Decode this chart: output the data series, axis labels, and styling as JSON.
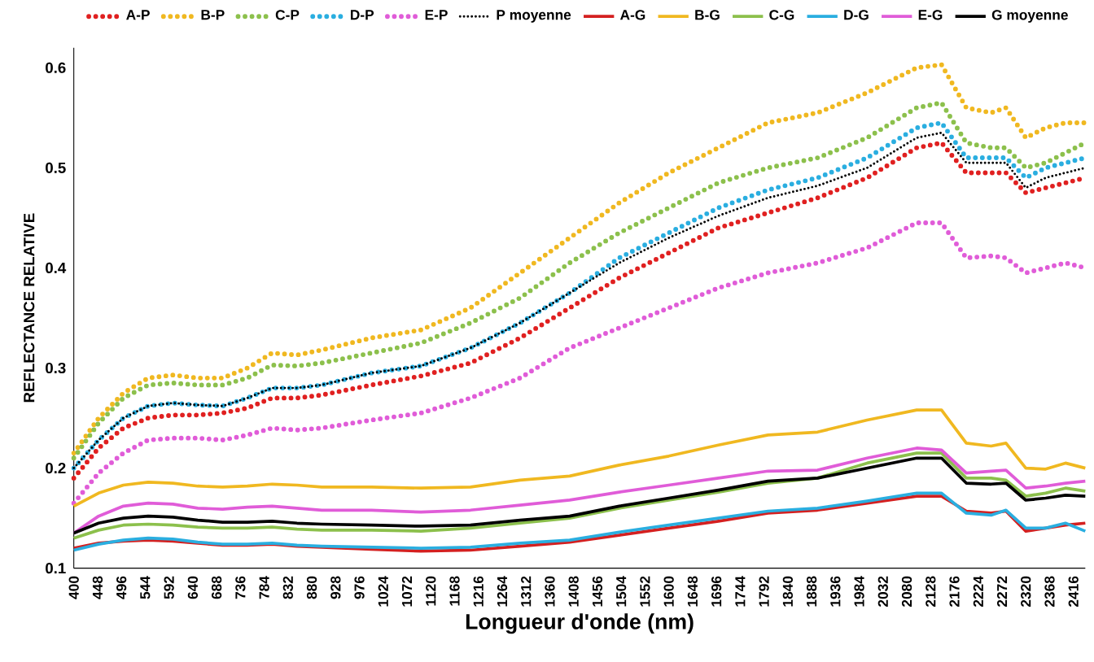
{
  "chart_data": {
    "type": "line",
    "xlabel": "Longueur d'onde (nm)",
    "ylabel": "REFLECTANCE  RELATIVE",
    "legend": "top",
    "xlim": [
      400,
      2440
    ],
    "ylim": [
      0.1,
      0.62
    ],
    "xticks": [
      400,
      448,
      496,
      544,
      592,
      640,
      688,
      736,
      784,
      832,
      880,
      928,
      976,
      1024,
      1072,
      1120,
      1168,
      1216,
      1264,
      1312,
      1360,
      1408,
      1456,
      1504,
      1552,
      1600,
      1648,
      1696,
      1744,
      1792,
      1840,
      1888,
      1936,
      1984,
      2032,
      2080,
      2128,
      2176,
      2224,
      2272,
      2320,
      2368,
      2416
    ],
    "yticks": [
      0.1,
      0.2,
      0.3,
      0.4,
      0.5,
      0.6
    ],
    "x": [
      400,
      450,
      500,
      550,
      600,
      650,
      700,
      750,
      800,
      850,
      900,
      1000,
      1100,
      1200,
      1300,
      1400,
      1500,
      1600,
      1700,
      1800,
      1900,
      2000,
      2100,
      2150,
      2200,
      2250,
      2280,
      2320,
      2360,
      2400,
      2440
    ],
    "series": [
      {
        "name": "A-P",
        "color": "#e02020",
        "line_style": "dotted",
        "values": [
          0.19,
          0.22,
          0.24,
          0.25,
          0.253,
          0.253,
          0.255,
          0.26,
          0.27,
          0.27,
          0.273,
          0.283,
          0.292,
          0.305,
          0.33,
          0.36,
          0.39,
          0.415,
          0.44,
          0.455,
          0.47,
          0.49,
          0.52,
          0.525,
          0.495,
          0.495,
          0.495,
          0.475,
          0.48,
          0.485,
          0.49
        ]
      },
      {
        "name": "B-P",
        "color": "#f0b820",
        "line_style": "dotted",
        "values": [
          0.215,
          0.25,
          0.275,
          0.29,
          0.293,
          0.29,
          0.29,
          0.3,
          0.315,
          0.313,
          0.318,
          0.33,
          0.338,
          0.36,
          0.395,
          0.43,
          0.465,
          0.495,
          0.52,
          0.545,
          0.555,
          0.575,
          0.6,
          0.603,
          0.56,
          0.555,
          0.56,
          0.53,
          0.54,
          0.545,
          0.545
        ]
      },
      {
        "name": "C-P",
        "color": "#8cc04c",
        "line_style": "dotted",
        "values": [
          0.21,
          0.245,
          0.27,
          0.283,
          0.285,
          0.283,
          0.283,
          0.29,
          0.303,
          0.302,
          0.305,
          0.315,
          0.325,
          0.345,
          0.37,
          0.405,
          0.435,
          0.46,
          0.485,
          0.5,
          0.51,
          0.53,
          0.56,
          0.565,
          0.525,
          0.52,
          0.52,
          0.5,
          0.505,
          0.515,
          0.525
        ]
      },
      {
        "name": "D-P",
        "color": "#2aaee0",
        "line_style": "dotted",
        "values": [
          0.2,
          0.228,
          0.25,
          0.262,
          0.265,
          0.263,
          0.262,
          0.27,
          0.28,
          0.28,
          0.283,
          0.295,
          0.302,
          0.32,
          0.345,
          0.375,
          0.41,
          0.435,
          0.46,
          0.478,
          0.49,
          0.51,
          0.54,
          0.545,
          0.51,
          0.51,
          0.51,
          0.49,
          0.5,
          0.505,
          0.51
        ]
      },
      {
        "name": "E-P",
        "color": "#e05cd8",
        "line_style": "dotted",
        "values": [
          0.165,
          0.195,
          0.215,
          0.228,
          0.23,
          0.23,
          0.228,
          0.233,
          0.24,
          0.238,
          0.24,
          0.248,
          0.255,
          0.27,
          0.29,
          0.32,
          0.34,
          0.36,
          0.38,
          0.395,
          0.405,
          0.42,
          0.445,
          0.445,
          0.41,
          0.412,
          0.41,
          0.395,
          0.4,
          0.405,
          0.4
        ]
      },
      {
        "name": "P moyenne",
        "color": "#000000",
        "line_style": "densely dotted",
        "values": [
          0.2,
          0.228,
          0.25,
          0.262,
          0.265,
          0.263,
          0.262,
          0.27,
          0.28,
          0.28,
          0.283,
          0.295,
          0.302,
          0.32,
          0.345,
          0.375,
          0.405,
          0.43,
          0.452,
          0.47,
          0.482,
          0.5,
          0.53,
          0.535,
          0.505,
          0.505,
          0.505,
          0.48,
          0.49,
          0.495,
          0.5
        ]
      },
      {
        "name": "A-G",
        "color": "#d42020",
        "line_style": "solid",
        "values": [
          0.12,
          0.125,
          0.127,
          0.128,
          0.127,
          0.125,
          0.123,
          0.123,
          0.124,
          0.122,
          0.121,
          0.119,
          0.117,
          0.118,
          0.122,
          0.126,
          0.133,
          0.14,
          0.147,
          0.155,
          0.158,
          0.165,
          0.172,
          0.172,
          0.157,
          0.155,
          0.157,
          0.137,
          0.14,
          0.143,
          0.145
        ]
      },
      {
        "name": "B-G",
        "color": "#f0b820",
        "line_style": "solid",
        "values": [
          0.162,
          0.175,
          0.183,
          0.186,
          0.185,
          0.182,
          0.181,
          0.182,
          0.184,
          0.183,
          0.181,
          0.181,
          0.18,
          0.181,
          0.188,
          0.192,
          0.203,
          0.212,
          0.223,
          0.233,
          0.236,
          0.248,
          0.258,
          0.258,
          0.225,
          0.222,
          0.225,
          0.2,
          0.199,
          0.205,
          0.2
        ]
      },
      {
        "name": "C-G",
        "color": "#8cc04c",
        "line_style": "solid",
        "values": [
          0.13,
          0.138,
          0.143,
          0.144,
          0.143,
          0.141,
          0.14,
          0.14,
          0.141,
          0.139,
          0.138,
          0.138,
          0.137,
          0.14,
          0.145,
          0.15,
          0.16,
          0.168,
          0.176,
          0.185,
          0.19,
          0.205,
          0.215,
          0.215,
          0.19,
          0.19,
          0.188,
          0.172,
          0.175,
          0.18,
          0.177
        ]
      },
      {
        "name": "D-G",
        "color": "#2aaee0",
        "line_style": "solid",
        "values": [
          0.118,
          0.124,
          0.128,
          0.13,
          0.129,
          0.126,
          0.124,
          0.124,
          0.125,
          0.123,
          0.122,
          0.121,
          0.12,
          0.121,
          0.125,
          0.128,
          0.136,
          0.143,
          0.15,
          0.157,
          0.16,
          0.167,
          0.175,
          0.175,
          0.155,
          0.153,
          0.158,
          0.14,
          0.14,
          0.145,
          0.137
        ]
      },
      {
        "name": "E-G",
        "color": "#e05cd8",
        "line_style": "solid",
        "values": [
          0.135,
          0.152,
          0.162,
          0.165,
          0.164,
          0.16,
          0.159,
          0.161,
          0.162,
          0.16,
          0.158,
          0.158,
          0.156,
          0.158,
          0.163,
          0.168,
          0.176,
          0.183,
          0.19,
          0.197,
          0.198,
          0.21,
          0.22,
          0.218,
          0.195,
          0.197,
          0.198,
          0.18,
          0.182,
          0.185,
          0.187
        ]
      },
      {
        "name": "G moyenne",
        "color": "#000000",
        "line_style": "solid",
        "values": [
          0.135,
          0.145,
          0.15,
          0.152,
          0.151,
          0.148,
          0.146,
          0.146,
          0.147,
          0.145,
          0.144,
          0.143,
          0.142,
          0.143,
          0.148,
          0.152,
          0.162,
          0.17,
          0.178,
          0.187,
          0.19,
          0.2,
          0.21,
          0.21,
          0.185,
          0.184,
          0.185,
          0.168,
          0.17,
          0.173,
          0.172
        ]
      }
    ]
  }
}
